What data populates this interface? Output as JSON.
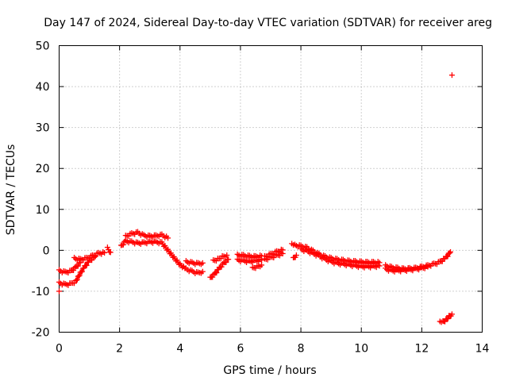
{
  "chart_data": {
    "type": "scatter",
    "title": "Day 147 of 2024, Sidereal Day-to-day VTEC variation (SDTVAR) for receiver areg",
    "xlabel": "GPS time / hours",
    "ylabel": "SDTVAR / TECUs",
    "xlim": [
      0,
      14
    ],
    "ylim": [
      -20,
      50
    ],
    "xticks": [
      0,
      2,
      4,
      6,
      8,
      10,
      12,
      14
    ],
    "yticks": [
      -20,
      -10,
      0,
      10,
      20,
      30,
      40,
      50
    ],
    "xtick_labels": [
      "0",
      "2",
      "4",
      "6",
      "8",
      "10",
      "12",
      "14"
    ],
    "ytick_labels": [
      "-20",
      "-10",
      "0",
      "10",
      "20",
      "30",
      "40",
      "50"
    ],
    "grid": true,
    "marker": "+",
    "color": "#ff0000",
    "series": [
      {
        "name": "SDTVAR",
        "segments": [
          {
            "x": [
              0.0,
              0.2,
              0.4,
              0.55,
              0.7,
              0.85,
              1.0,
              1.2
            ],
            "y": [
              -8.0,
              -8.4,
              -8.2,
              -7.6,
              -5.6,
              -4.0,
              -2.6,
              -1.5
            ]
          },
          {
            "x": [
              0.0,
              0.2,
              0.4,
              0.55,
              0.7
            ],
            "y": [
              -5.0,
              -5.4,
              -5.1,
              -4.2,
              -3.0
            ]
          },
          {
            "x": [
              0.5,
              0.7,
              0.9,
              1.1,
              1.3,
              1.5
            ],
            "y": [
              -2.0,
              -2.3,
              -2.0,
              -1.4,
              -0.8,
              -0.6
            ]
          },
          {
            "x": [
              0.0
            ],
            "y": [
              -10.0
            ]
          },
          {
            "x": [
              1.6,
              1.7
            ],
            "y": [
              0.5,
              -0.5
            ]
          },
          {
            "x": [
              2.05,
              2.2,
              2.4,
              2.6,
              2.8,
              3.0,
              3.2,
              3.4,
              3.6,
              3.8,
              4.0,
              4.2,
              4.4,
              4.6,
              4.75
            ],
            "y": [
              1.0,
              2.2,
              2.0,
              1.7,
              1.8,
              2.0,
              2.0,
              1.8,
              0.0,
              -1.8,
              -3.5,
              -4.6,
              -5.2,
              -5.6,
              -5.2
            ]
          },
          {
            "x": [
              2.2,
              2.4,
              2.6,
              2.8,
              3.0,
              3.2,
              3.4,
              3.6
            ],
            "y": [
              3.4,
              4.0,
              4.3,
              3.6,
              3.4,
              3.5,
              3.7,
              3.0
            ]
          },
          {
            "x": [
              4.2,
              4.4,
              4.6,
              4.75
            ],
            "y": [
              -2.8,
              -3.1,
              -3.3,
              -3.1
            ]
          },
          {
            "x": [
              5.0,
              5.15,
              5.3,
              5.45,
              5.6
            ],
            "y": [
              -6.8,
              -5.8,
              -4.4,
              -3.2,
              -2.2
            ]
          },
          {
            "x": [
              5.1,
              5.25,
              5.4,
              5.55
            ],
            "y": [
              -2.6,
              -2.2,
              -1.6,
              -1.2
            ]
          },
          {
            "x": [
              5.9,
              6.1,
              6.3,
              6.5,
              6.7
            ],
            "y": [
              -1.2,
              -1.3,
              -1.5,
              -1.6,
              -1.4
            ]
          },
          {
            "x": [
              5.9,
              6.1,
              6.3,
              6.5,
              6.7
            ],
            "y": [
              -2.4,
              -2.6,
              -2.8,
              -2.6,
              -2.4
            ]
          },
          {
            "x": [
              6.4,
              6.55,
              6.7
            ],
            "y": [
              -4.4,
              -4.0,
              -3.6
            ]
          },
          {
            "x": [
              6.8,
              7.0,
              7.2,
              7.4
            ],
            "y": [
              -1.6,
              -1.0,
              -0.4,
              0.1
            ]
          },
          {
            "x": [
              6.8,
              7.0,
              7.2,
              7.4
            ],
            "y": [
              -2.3,
              -1.8,
              -1.3,
              -0.8
            ]
          },
          {
            "x": [
              7.7,
              7.8,
              8.0,
              8.2,
              8.4,
              8.6,
              8.8,
              9.0,
              9.2,
              9.4,
              9.6,
              9.8,
              10.0,
              10.2,
              10.4,
              10.6
            ],
            "y": [
              1.4,
              1.2,
              1.0,
              0.6,
              -0.2,
              -1.0,
              -1.6,
              -2.0,
              -2.3,
              -2.5,
              -2.7,
              -2.8,
              -2.9,
              -3.0,
              -3.0,
              -3.0
            ]
          },
          {
            "x": [
              8.0,
              8.2,
              8.4,
              8.6,
              8.8,
              9.0,
              9.2,
              9.4,
              9.6,
              9.8,
              10.0,
              10.2,
              10.4,
              10.6
            ],
            "y": [
              0.2,
              -0.2,
              -0.8,
              -1.4,
              -2.2,
              -2.8,
              -3.2,
              -3.4,
              -3.6,
              -3.8,
              -4.0,
              -4.0,
              -4.0,
              -3.8
            ]
          },
          {
            "x": [
              7.75,
              7.85
            ],
            "y": [
              -2.0,
              -1.2
            ]
          },
          {
            "x": [
              10.8,
              11.0,
              11.2,
              11.4,
              11.6,
              11.8,
              12.0,
              12.2,
              12.4,
              12.6,
              12.8,
              12.95
            ],
            "y": [
              -3.8,
              -4.2,
              -4.4,
              -4.6,
              -4.5,
              -4.4,
              -4.1,
              -3.8,
              -3.4,
              -2.9,
              -1.8,
              -0.4
            ]
          },
          {
            "x": [
              10.8,
              11.0,
              11.2,
              11.4,
              11.6,
              11.8,
              12.0,
              12.2
            ],
            "y": [
              -4.6,
              -5.0,
              -5.0,
              -4.9,
              -4.8,
              -4.6,
              -4.4,
              -4.0
            ]
          },
          {
            "x": [
              12.6,
              12.7,
              12.8,
              12.9,
              13.0
            ],
            "y": [
              -17.6,
              -17.5,
              -17.0,
              -16.2,
              -15.6
            ]
          },
          {
            "x": [
              13.0
            ],
            "y": [
              42.8
            ]
          }
        ]
      }
    ]
  }
}
